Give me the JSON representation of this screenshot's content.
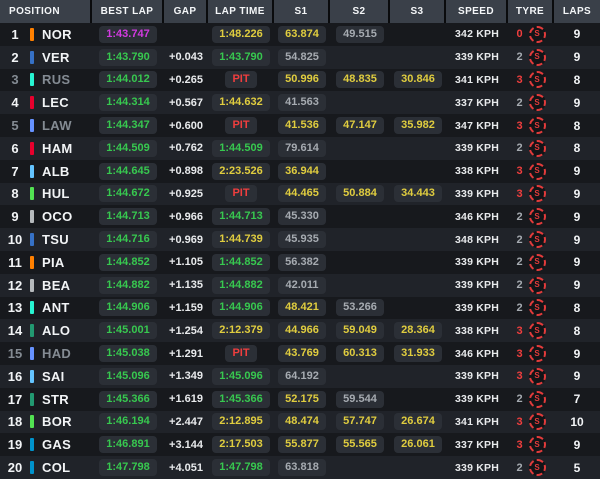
{
  "table": {
    "columns": [
      "POSITION",
      "BEST LAP",
      "GAP",
      "LAP TIME",
      "S1",
      "S2",
      "S3",
      "SPEED",
      "TYRE",
      "LAPS"
    ]
  },
  "colors": {
    "purple": "#d23ae0",
    "green": "#37c84f",
    "yellow": "#e0cd3f",
    "red": "#f03e3e",
    "gray": "#a6abb1",
    "white": "#eceef0"
  },
  "rows": [
    {
      "position": "1",
      "driver": "NOR",
      "team_color": "#ff8000",
      "dimmed": false,
      "best_lap": {
        "text": "1:43.747",
        "color": "purple"
      },
      "gap": "",
      "lap_time": {
        "text": "1:48.226",
        "color": "yellow"
      },
      "s1": {
        "text": "63.874",
        "color": "yellow"
      },
      "s2": {
        "text": "49.515",
        "color": "gray"
      },
      "s3": null,
      "speed": "342 KPH",
      "tyre": {
        "count": "0",
        "count_color": "red",
        "compound": "S"
      },
      "laps": "9"
    },
    {
      "position": "2",
      "driver": "VER",
      "team_color": "#3671c6",
      "dimmed": false,
      "best_lap": {
        "text": "1:43.790",
        "color": "green"
      },
      "gap": "+0.043",
      "lap_time": {
        "text": "1:43.790",
        "color": "green"
      },
      "s1": {
        "text": "54.825",
        "color": "gray"
      },
      "s2": null,
      "s3": null,
      "speed": "339 KPH",
      "tyre": {
        "count": "2",
        "count_color": "gray",
        "compound": "S"
      },
      "laps": "9"
    },
    {
      "position": "3",
      "driver": "RUS",
      "team_color": "#27f4d2",
      "dimmed": true,
      "best_lap": {
        "text": "1:44.012",
        "color": "green"
      },
      "gap": "+0.265",
      "lap_time": {
        "text": "PIT",
        "color": "red"
      },
      "s1": {
        "text": "50.996",
        "color": "yellow"
      },
      "s2": {
        "text": "48.835",
        "color": "yellow"
      },
      "s3": {
        "text": "30.846",
        "color": "yellow"
      },
      "speed": "341 KPH",
      "tyre": {
        "count": "3",
        "count_color": "red",
        "compound": "S"
      },
      "laps": "8"
    },
    {
      "position": "4",
      "driver": "LEC",
      "team_color": "#e8002d",
      "dimmed": false,
      "best_lap": {
        "text": "1:44.314",
        "color": "green"
      },
      "gap": "+0.567",
      "lap_time": {
        "text": "1:44.632",
        "color": "yellow"
      },
      "s1": {
        "text": "41.563",
        "color": "gray"
      },
      "s2": null,
      "s3": null,
      "speed": "337 KPH",
      "tyre": {
        "count": "2",
        "count_color": "gray",
        "compound": "S"
      },
      "laps": "9"
    },
    {
      "position": "5",
      "driver": "LAW",
      "team_color": "#6692ff",
      "dimmed": true,
      "best_lap": {
        "text": "1:44.347",
        "color": "green"
      },
      "gap": "+0.600",
      "lap_time": {
        "text": "PIT",
        "color": "red"
      },
      "s1": {
        "text": "41.536",
        "color": "yellow"
      },
      "s2": {
        "text": "47.147",
        "color": "yellow"
      },
      "s3": {
        "text": "35.982",
        "color": "yellow"
      },
      "speed": "347 KPH",
      "tyre": {
        "count": "3",
        "count_color": "red",
        "compound": "S"
      },
      "laps": "8"
    },
    {
      "position": "6",
      "driver": "HAM",
      "team_color": "#e8002d",
      "dimmed": false,
      "best_lap": {
        "text": "1:44.509",
        "color": "green"
      },
      "gap": "+0.762",
      "lap_time": {
        "text": "1:44.509",
        "color": "green"
      },
      "s1": {
        "text": "79.614",
        "color": "gray"
      },
      "s2": null,
      "s3": null,
      "speed": "339 KPH",
      "tyre": {
        "count": "2",
        "count_color": "gray",
        "compound": "S"
      },
      "laps": "8"
    },
    {
      "position": "7",
      "driver": "ALB",
      "team_color": "#64c4ff",
      "dimmed": false,
      "best_lap": {
        "text": "1:44.645",
        "color": "green"
      },
      "gap": "+0.898",
      "lap_time": {
        "text": "2:23.526",
        "color": "yellow"
      },
      "s1": {
        "text": "36.944",
        "color": "yellow"
      },
      "s2": null,
      "s3": null,
      "speed": "338 KPH",
      "tyre": {
        "count": "3",
        "count_color": "red",
        "compound": "S"
      },
      "laps": "9"
    },
    {
      "position": "8",
      "driver": "HUL",
      "team_color": "#52e252",
      "dimmed": false,
      "best_lap": {
        "text": "1:44.672",
        "color": "green"
      },
      "gap": "+0.925",
      "lap_time": {
        "text": "PIT",
        "color": "red"
      },
      "s1": {
        "text": "44.465",
        "color": "yellow"
      },
      "s2": {
        "text": "50.884",
        "color": "yellow"
      },
      "s3": {
        "text": "34.443",
        "color": "yellow"
      },
      "speed": "339 KPH",
      "tyre": {
        "count": "3",
        "count_color": "red",
        "compound": "S"
      },
      "laps": "9"
    },
    {
      "position": "9",
      "driver": "OCO",
      "team_color": "#b6babd",
      "dimmed": false,
      "best_lap": {
        "text": "1:44.713",
        "color": "green"
      },
      "gap": "+0.966",
      "lap_time": {
        "text": "1:44.713",
        "color": "green"
      },
      "s1": {
        "text": "45.330",
        "color": "gray"
      },
      "s2": null,
      "s3": null,
      "speed": "346 KPH",
      "tyre": {
        "count": "2",
        "count_color": "gray",
        "compound": "S"
      },
      "laps": "9"
    },
    {
      "position": "10",
      "driver": "TSU",
      "team_color": "#3671c6",
      "dimmed": false,
      "best_lap": {
        "text": "1:44.716",
        "color": "green"
      },
      "gap": "+0.969",
      "lap_time": {
        "text": "1:44.739",
        "color": "yellow"
      },
      "s1": {
        "text": "45.935",
        "color": "gray"
      },
      "s2": null,
      "s3": null,
      "speed": "348 KPH",
      "tyre": {
        "count": "2",
        "count_color": "gray",
        "compound": "S"
      },
      "laps": "9"
    },
    {
      "position": "11",
      "driver": "PIA",
      "team_color": "#ff8000",
      "dimmed": false,
      "best_lap": {
        "text": "1:44.852",
        "color": "green"
      },
      "gap": "+1.105",
      "lap_time": {
        "text": "1:44.852",
        "color": "green"
      },
      "s1": {
        "text": "56.382",
        "color": "gray"
      },
      "s2": null,
      "s3": null,
      "speed": "339 KPH",
      "tyre": {
        "count": "2",
        "count_color": "gray",
        "compound": "S"
      },
      "laps": "9"
    },
    {
      "position": "12",
      "driver": "BEA",
      "team_color": "#b6babd",
      "dimmed": false,
      "best_lap": {
        "text": "1:44.882",
        "color": "green"
      },
      "gap": "+1.135",
      "lap_time": {
        "text": "1:44.882",
        "color": "green"
      },
      "s1": {
        "text": "42.011",
        "color": "gray"
      },
      "s2": null,
      "s3": null,
      "speed": "339 KPH",
      "tyre": {
        "count": "2",
        "count_color": "gray",
        "compound": "S"
      },
      "laps": "9"
    },
    {
      "position": "13",
      "driver": "ANT",
      "team_color": "#27f4d2",
      "dimmed": false,
      "best_lap": {
        "text": "1:44.906",
        "color": "green"
      },
      "gap": "+1.159",
      "lap_time": {
        "text": "1:44.906",
        "color": "green"
      },
      "s1": {
        "text": "48.421",
        "color": "yellow"
      },
      "s2": {
        "text": "53.266",
        "color": "gray"
      },
      "s3": null,
      "speed": "339 KPH",
      "tyre": {
        "count": "2",
        "count_color": "gray",
        "compound": "S"
      },
      "laps": "8"
    },
    {
      "position": "14",
      "driver": "ALO",
      "team_color": "#229971",
      "dimmed": false,
      "best_lap": {
        "text": "1:45.001",
        "color": "green"
      },
      "gap": "+1.254",
      "lap_time": {
        "text": "2:12.379",
        "color": "yellow"
      },
      "s1": {
        "text": "44.966",
        "color": "yellow"
      },
      "s2": {
        "text": "59.049",
        "color": "yellow"
      },
      "s3": {
        "text": "28.364",
        "color": "yellow"
      },
      "speed": "338 KPH",
      "tyre": {
        "count": "3",
        "count_color": "red",
        "compound": "S"
      },
      "laps": "8"
    },
    {
      "position": "15",
      "driver": "HAD",
      "team_color": "#6692ff",
      "dimmed": true,
      "best_lap": {
        "text": "1:45.038",
        "color": "green"
      },
      "gap": "+1.291",
      "lap_time": {
        "text": "PIT",
        "color": "red"
      },
      "s1": {
        "text": "43.769",
        "color": "yellow"
      },
      "s2": {
        "text": "60.313",
        "color": "yellow"
      },
      "s3": {
        "text": "31.933",
        "color": "yellow"
      },
      "speed": "346 KPH",
      "tyre": {
        "count": "3",
        "count_color": "red",
        "compound": "S"
      },
      "laps": "9"
    },
    {
      "position": "16",
      "driver": "SAI",
      "team_color": "#64c4ff",
      "dimmed": false,
      "best_lap": {
        "text": "1:45.096",
        "color": "green"
      },
      "gap": "+1.349",
      "lap_time": {
        "text": "1:45.096",
        "color": "green"
      },
      "s1": {
        "text": "64.192",
        "color": "gray"
      },
      "s2": null,
      "s3": null,
      "speed": "339 KPH",
      "tyre": {
        "count": "3",
        "count_color": "red",
        "compound": "S"
      },
      "laps": "9"
    },
    {
      "position": "17",
      "driver": "STR",
      "team_color": "#229971",
      "dimmed": false,
      "best_lap": {
        "text": "1:45.366",
        "color": "green"
      },
      "gap": "+1.619",
      "lap_time": {
        "text": "1:45.366",
        "color": "green"
      },
      "s1": {
        "text": "52.175",
        "color": "yellow"
      },
      "s2": {
        "text": "59.544",
        "color": "gray"
      },
      "s3": null,
      "speed": "339 KPH",
      "tyre": {
        "count": "2",
        "count_color": "gray",
        "compound": "S"
      },
      "laps": "7"
    },
    {
      "position": "18",
      "driver": "BOR",
      "team_color": "#52e252",
      "dimmed": false,
      "best_lap": {
        "text": "1:46.194",
        "color": "green"
      },
      "gap": "+2.447",
      "lap_time": {
        "text": "2:12.895",
        "color": "yellow"
      },
      "s1": {
        "text": "48.474",
        "color": "yellow"
      },
      "s2": {
        "text": "57.747",
        "color": "yellow"
      },
      "s3": {
        "text": "26.674",
        "color": "yellow"
      },
      "speed": "341 KPH",
      "tyre": {
        "count": "3",
        "count_color": "red",
        "compound": "S"
      },
      "laps": "10"
    },
    {
      "position": "19",
      "driver": "GAS",
      "team_color": "#0093cc",
      "dimmed": false,
      "best_lap": {
        "text": "1:46.891",
        "color": "green"
      },
      "gap": "+3.144",
      "lap_time": {
        "text": "2:17.503",
        "color": "yellow"
      },
      "s1": {
        "text": "55.877",
        "color": "yellow"
      },
      "s2": {
        "text": "55.565",
        "color": "yellow"
      },
      "s3": {
        "text": "26.061",
        "color": "yellow"
      },
      "speed": "337 KPH",
      "tyre": {
        "count": "3",
        "count_color": "red",
        "compound": "S"
      },
      "laps": "9"
    },
    {
      "position": "20",
      "driver": "COL",
      "team_color": "#0093cc",
      "dimmed": false,
      "best_lap": {
        "text": "1:47.798",
        "color": "green"
      },
      "gap": "+4.051",
      "lap_time": {
        "text": "1:47.798",
        "color": "green"
      },
      "s1": {
        "text": "63.818",
        "color": "gray"
      },
      "s2": null,
      "s3": null,
      "speed": "339 KPH",
      "tyre": {
        "count": "2",
        "count_color": "gray",
        "compound": "S"
      },
      "laps": "5"
    }
  ]
}
